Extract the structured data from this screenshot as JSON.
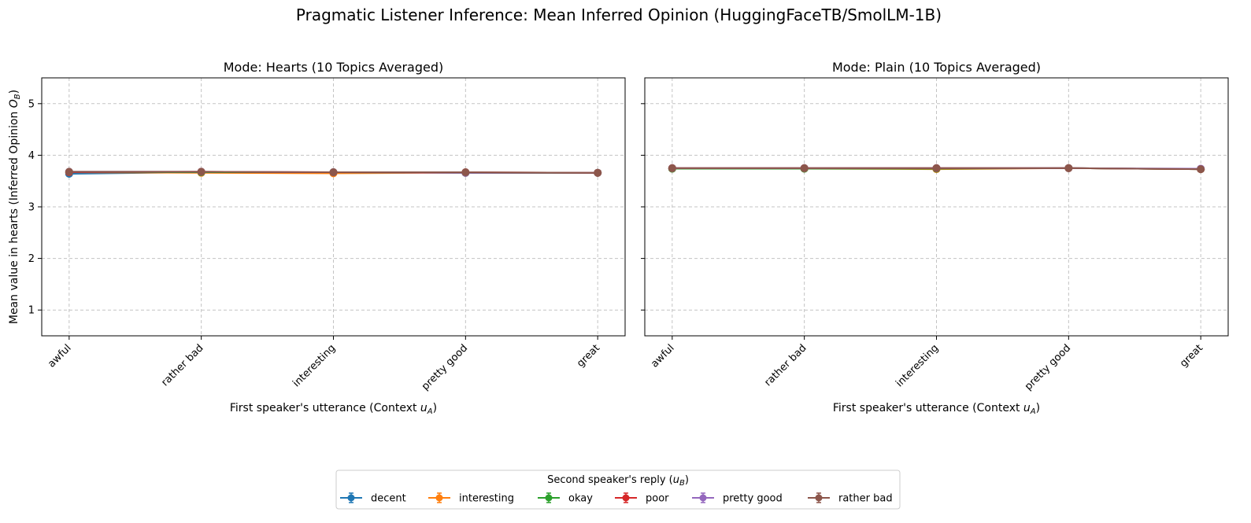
{
  "figure": {
    "title": "Pragmatic Listener Inference: Mean Inferred Opinion (HuggingFaceTB/SmolLM-1B)"
  },
  "chart_data": [
    {
      "type": "line",
      "title": "Mode: Hearts (10 Topics Averaged)",
      "xlabel": "First speaker's utterance (Context u_A)",
      "ylabel": "Mean value in hearts (Inferred Opinion O_B)",
      "categories": [
        "awful",
        "rather bad",
        "interesting",
        "pretty good",
        "great"
      ],
      "yticks": [
        "1",
        "2",
        "3",
        "4",
        "5"
      ],
      "ylim": [
        0.5,
        5.5
      ],
      "grid": true,
      "series": [
        {
          "name": "decent",
          "color": "#1f77b4",
          "values": [
            3.64,
            3.67,
            3.67,
            3.66,
            3.66
          ]
        },
        {
          "name": "interesting",
          "color": "#ff7f0e",
          "values": [
            3.67,
            3.66,
            3.65,
            3.66,
            3.66
          ]
        },
        {
          "name": "okay",
          "color": "#2ca02c",
          "values": [
            3.67,
            3.67,
            3.67,
            3.66,
            3.66
          ]
        },
        {
          "name": "poor",
          "color": "#d62728",
          "values": [
            3.67,
            3.68,
            3.67,
            3.67,
            3.66
          ]
        },
        {
          "name": "pretty good",
          "color": "#9467bd",
          "values": [
            3.68,
            3.68,
            3.67,
            3.66,
            3.66
          ]
        },
        {
          "name": "rather bad",
          "color": "#8c564b",
          "values": [
            3.68,
            3.68,
            3.67,
            3.67,
            3.66
          ]
        }
      ]
    },
    {
      "type": "line",
      "title": "Mode: Plain (10 Topics Averaged)",
      "xlabel": "First speaker's utterance (Context u_A)",
      "ylabel": "",
      "categories": [
        "awful",
        "rather bad",
        "interesting",
        "pretty good",
        "great"
      ],
      "yticks": [
        "1",
        "2",
        "3",
        "4",
        "5"
      ],
      "ylim": [
        0.5,
        5.5
      ],
      "grid": true,
      "series": [
        {
          "name": "decent",
          "color": "#1f77b4",
          "values": [
            3.74,
            3.74,
            3.74,
            3.75,
            3.73
          ]
        },
        {
          "name": "interesting",
          "color": "#ff7f0e",
          "values": [
            3.74,
            3.74,
            3.73,
            3.75,
            3.73
          ]
        },
        {
          "name": "okay",
          "color": "#2ca02c",
          "values": [
            3.74,
            3.74,
            3.74,
            3.75,
            3.73
          ]
        },
        {
          "name": "poor",
          "color": "#d62728",
          "values": [
            3.75,
            3.75,
            3.75,
            3.75,
            3.73
          ]
        },
        {
          "name": "pretty good",
          "color": "#9467bd",
          "values": [
            3.75,
            3.75,
            3.75,
            3.75,
            3.74
          ]
        },
        {
          "name": "rather bad",
          "color": "#8c564b",
          "values": [
            3.75,
            3.75,
            3.75,
            3.75,
            3.73
          ]
        }
      ]
    }
  ],
  "legend": {
    "title": "Second speaker's reply (u_B)",
    "placement": "bottom-center"
  }
}
